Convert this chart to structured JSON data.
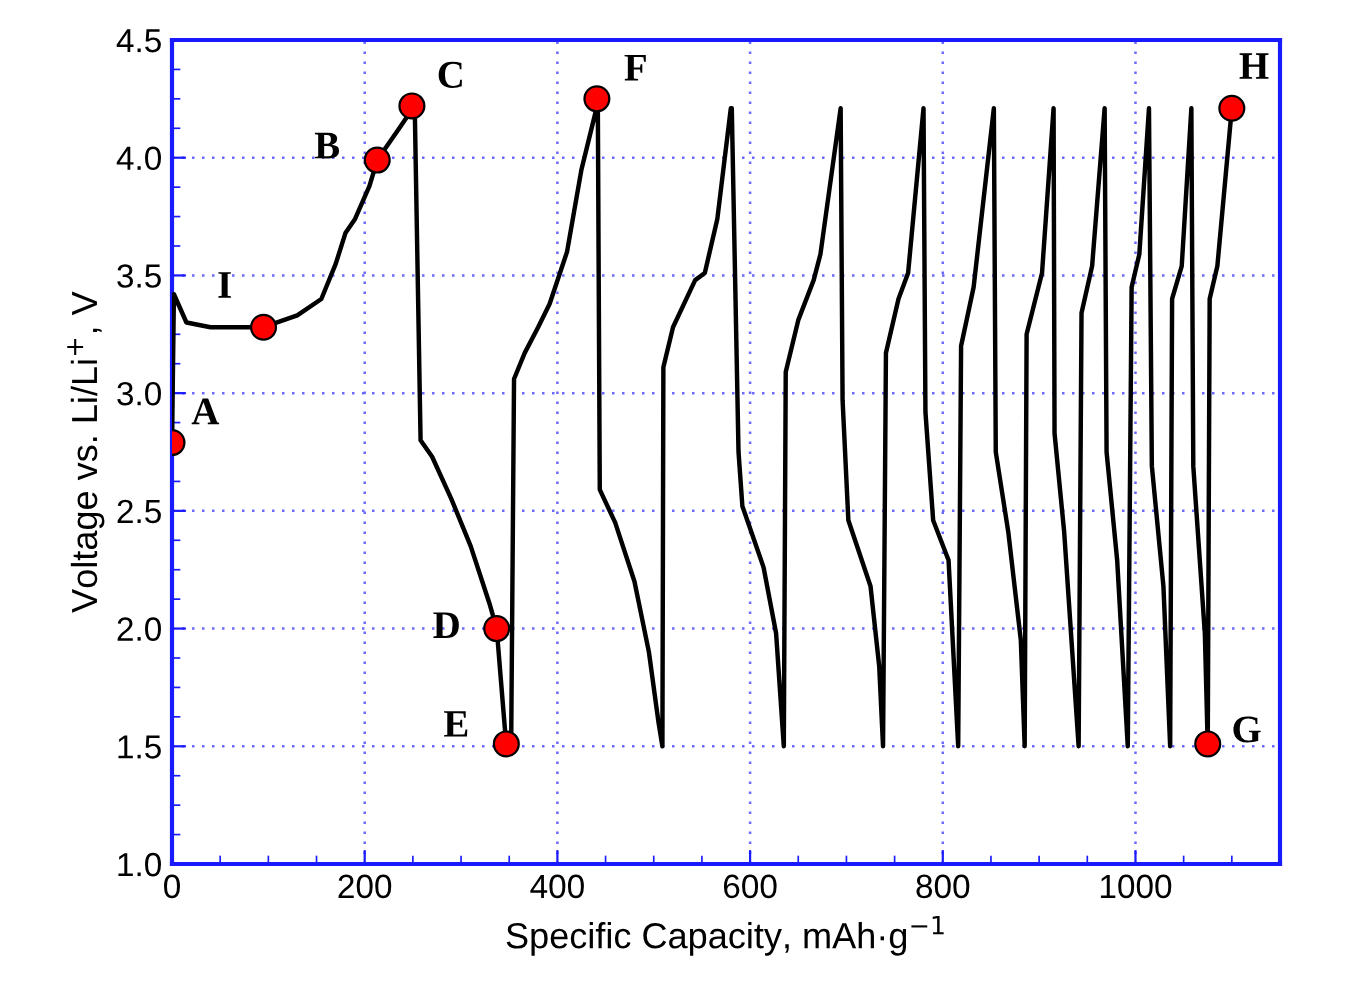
{
  "chart_data": {
    "type": "line",
    "xlabel": "Specific Capacity, mAh·g$^{−1}$",
    "ylabel": "Voltage vs. Li/Li$^{+}$, V",
    "xlim": [
      0,
      1150
    ],
    "ylim": [
      1.0,
      4.5
    ],
    "xticks": [
      0,
      {
        "value": 50,
        "label": null
      },
      {
        "value": 100,
        "label": null
      },
      {
        "value": 150,
        "label": null
      },
      200,
      {
        "value": 250,
        "label": null
      },
      {
        "value": 300,
        "label": null
      },
      {
        "value": 350,
        "label": null
      },
      400,
      {
        "value": 450,
        "label": null
      },
      {
        "value": 500,
        "label": null
      },
      {
        "value": 550,
        "label": null
      },
      600,
      {
        "value": 650,
        "label": null
      },
      {
        "value": 700,
        "label": null
      },
      {
        "value": 750,
        "label": null
      },
      800,
      {
        "value": 850,
        "label": null
      },
      {
        "value": 900,
        "label": null
      },
      {
        "value": 950,
        "label": null
      },
      1000,
      {
        "value": 1050,
        "label": null
      },
      {
        "value": 1100,
        "label": null
      }
    ],
    "yticks": [
      {
        "value": 1.0,
        "label": "1.0"
      },
      {
        "value": 1.125,
        "label": null
      },
      {
        "value": 1.25,
        "label": null
      },
      {
        "value": 1.375,
        "label": null
      },
      {
        "value": 1.5,
        "label": "1.5"
      },
      {
        "value": 1.625,
        "label": null
      },
      {
        "value": 1.75,
        "label": null
      },
      {
        "value": 1.875,
        "label": null
      },
      {
        "value": 2.0,
        "label": "2.0"
      },
      {
        "value": 2.125,
        "label": null
      },
      {
        "value": 2.25,
        "label": null
      },
      {
        "value": 2.375,
        "label": null
      },
      {
        "value": 2.5,
        "label": "2.5"
      },
      {
        "value": 2.625,
        "label": null
      },
      {
        "value": 2.75,
        "label": null
      },
      {
        "value": 2.875,
        "label": null
      },
      {
        "value": 3.0,
        "label": "3.0"
      },
      {
        "value": 3.125,
        "label": null
      },
      {
        "value": 3.25,
        "label": null
      },
      {
        "value": 3.375,
        "label": null
      },
      {
        "value": 3.5,
        "label": "3.5"
      },
      {
        "value": 3.625,
        "label": null
      },
      {
        "value": 3.75,
        "label": null
      },
      {
        "value": 3.875,
        "label": null
      },
      {
        "value": 4.0,
        "label": "4.0"
      },
      {
        "value": 4.125,
        "label": null
      },
      {
        "value": 4.25,
        "label": null
      },
      {
        "value": 4.375,
        "label": null
      },
      {
        "value": 4.5,
        "label": "4.5"
      }
    ],
    "grid": true,
    "legend": false,
    "series": [
      {
        "color": "#000000",
        "marker": "none",
        "line_style": "solid",
        "x": [
          0,
          2,
          15,
          40,
          95,
          130,
          155,
          170,
          180,
          190,
          205,
          213,
          235,
          250,
          252,
          258,
          270,
          290,
          310,
          330,
          337,
          345,
          347,
          352,
          355,
          366,
          380,
          392,
          410,
          425,
          440,
          442,
          444,
          460,
          480,
          495,
          505,
          509,
          510,
          520,
          543,
          553,
          566,
          580,
          581,
          588,
          592,
          614,
          627,
          635,
          637,
          650,
          666,
          673,
          694,
          696,
          702,
          725,
          734,
          738,
          741,
          754,
          764,
          780,
          782,
          790,
          806,
          816,
          819,
          832,
          853,
          855,
          868,
          881,
          885,
          887,
          903,
          915,
          916,
          926,
          941,
          944,
          955,
          968,
          970,
          981,
          992,
          996,
          1004,
          1014,
          1017,
          1029,
          1036,
          1038,
          1048,
          1058,
          1060,
          1072,
          1075,
          1077,
          1085,
          1100
        ],
        "values": [
          2.78,
          3.42,
          3.3,
          3.28,
          3.28,
          3.33,
          3.4,
          3.55,
          3.68,
          3.74,
          3.88,
          3.99,
          4.12,
          4.21,
          4.2,
          2.8,
          2.73,
          2.55,
          2.35,
          2.1,
          2.0,
          1.6,
          1.5,
          1.5,
          3.06,
          3.17,
          3.28,
          3.38,
          3.6,
          3.95,
          4.2,
          4.2,
          2.59,
          2.45,
          2.2,
          1.9,
          1.6,
          1.5,
          3.11,
          3.28,
          3.48,
          3.51,
          3.74,
          4.21,
          4.21,
          2.75,
          2.52,
          2.26,
          1.98,
          1.5,
          3.09,
          3.31,
          3.48,
          3.59,
          4.21,
          2.97,
          2.46,
          2.18,
          1.84,
          1.5,
          3.17,
          3.4,
          3.51,
          4.21,
          2.92,
          2.46,
          2.29,
          1.5,
          3.2,
          3.45,
          4.21,
          2.75,
          2.41,
          1.95,
          1.5,
          3.25,
          3.51,
          4.21,
          2.83,
          2.41,
          1.5,
          3.34,
          3.54,
          4.21,
          2.75,
          2.29,
          1.5,
          3.45,
          3.59,
          4.21,
          2.69,
          2.18,
          1.5,
          3.4,
          3.54,
          4.21,
          2.69,
          1.98,
          1.5,
          3.4,
          3.54,
          4.21
        ]
      },
      {
        "type": "scatter",
        "color": "#ff0000",
        "marker": "circle",
        "x": [
          0,
          213,
          249,
          337,
          347,
          441,
          1075,
          1100,
          95
        ],
        "values": [
          2.79,
          3.99,
          4.22,
          2.0,
          1.51,
          4.25,
          1.51,
          4.21,
          3.28
        ]
      }
    ],
    "annotations": [
      {
        "text": "A",
        "x": 0,
        "y": 2.79
      },
      {
        "text": "B",
        "x": 213,
        "y": 3.99
      },
      {
        "text": "C",
        "x": 249,
        "y": 4.22
      },
      {
        "text": "D",
        "x": 337,
        "y": 2.0
      },
      {
        "text": "E",
        "x": 347,
        "y": 1.51
      },
      {
        "text": "F",
        "x": 441,
        "y": 4.25
      },
      {
        "text": "G",
        "x": 1075,
        "y": 1.51
      },
      {
        "text": "H",
        "x": 1100,
        "y": 4.21
      },
      {
        "text": "I",
        "x": 95,
        "y": 3.28
      }
    ]
  }
}
